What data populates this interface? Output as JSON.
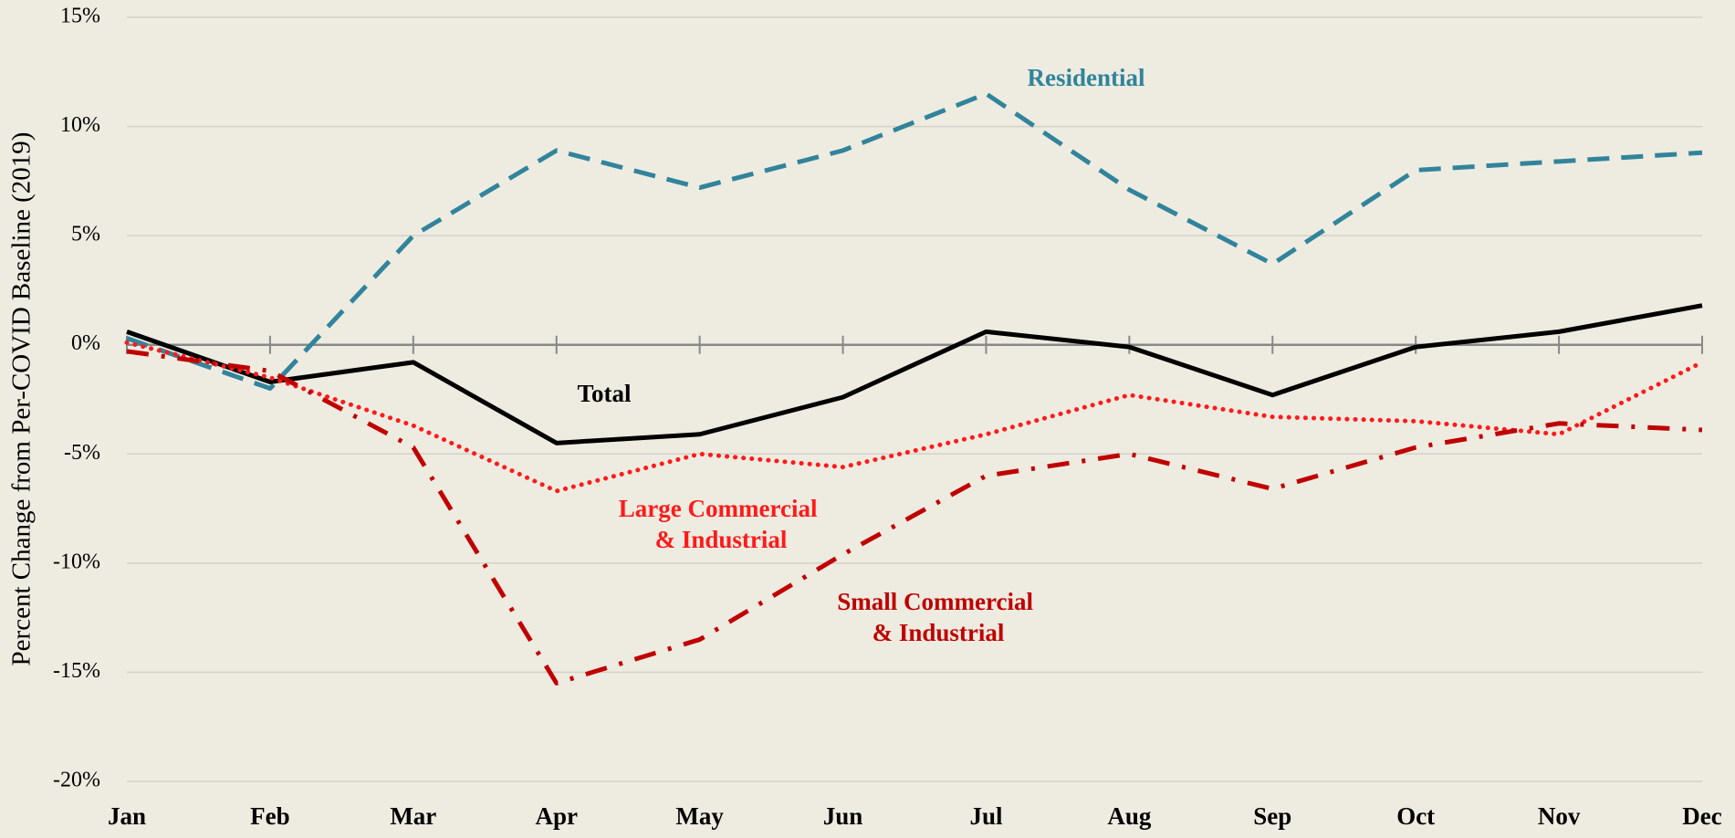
{
  "chart_data": {
    "type": "line",
    "ylabel": "Percent Change from Per-COVID Baseline (2019)",
    "categories": [
      "Jan",
      "Feb",
      "Mar",
      "Apr",
      "May",
      "Jun",
      "Jul",
      "Aug",
      "Sep",
      "Oct",
      "Nov",
      "Dec"
    ],
    "series": [
      {
        "name": "Residential",
        "color": "#31849b",
        "style": "dashed",
        "values": [
          0.3,
          -2.0,
          5.0,
          8.9,
          7.2,
          8.9,
          11.5,
          7.1,
          3.7,
          8.0,
          8.4,
          8.8
        ]
      },
      {
        "name": "Total",
        "color": "#000000",
        "style": "solid",
        "values": [
          0.6,
          -1.7,
          -0.8,
          -4.5,
          -4.1,
          -2.4,
          0.6,
          -0.1,
          -2.3,
          -0.1,
          0.6,
          1.8
        ]
      },
      {
        "name": "Large Commercial & Industrial",
        "color": "#ff1a1a",
        "style": "dotted",
        "values": [
          0.1,
          -1.5,
          -3.7,
          -6.7,
          -5.0,
          -5.6,
          -4.1,
          -2.3,
          -3.3,
          -3.5,
          -4.1,
          -0.8
        ]
      },
      {
        "name": "Small Commercial & Industrial",
        "color": "#c00000",
        "style": "dashdot",
        "values": [
          -0.3,
          -1.2,
          -4.7,
          -15.5,
          -13.5,
          -9.6,
          -6.0,
          -5.0,
          -6.6,
          -4.7,
          -3.6,
          -3.9
        ]
      }
    ],
    "ylim": [
      -20,
      15
    ],
    "yticks": [
      {
        "value": -20,
        "label": "-20%"
      },
      {
        "value": -15,
        "label": "-15%"
      },
      {
        "value": -10,
        "label": "-10%"
      },
      {
        "value": -5,
        "label": "-5%"
      },
      {
        "value": 0,
        "label": "0%"
      },
      {
        "value": 5,
        "label": "5%"
      },
      {
        "value": 10,
        "label": "10%"
      },
      {
        "value": 15,
        "label": "15%"
      }
    ],
    "grid": true
  }
}
